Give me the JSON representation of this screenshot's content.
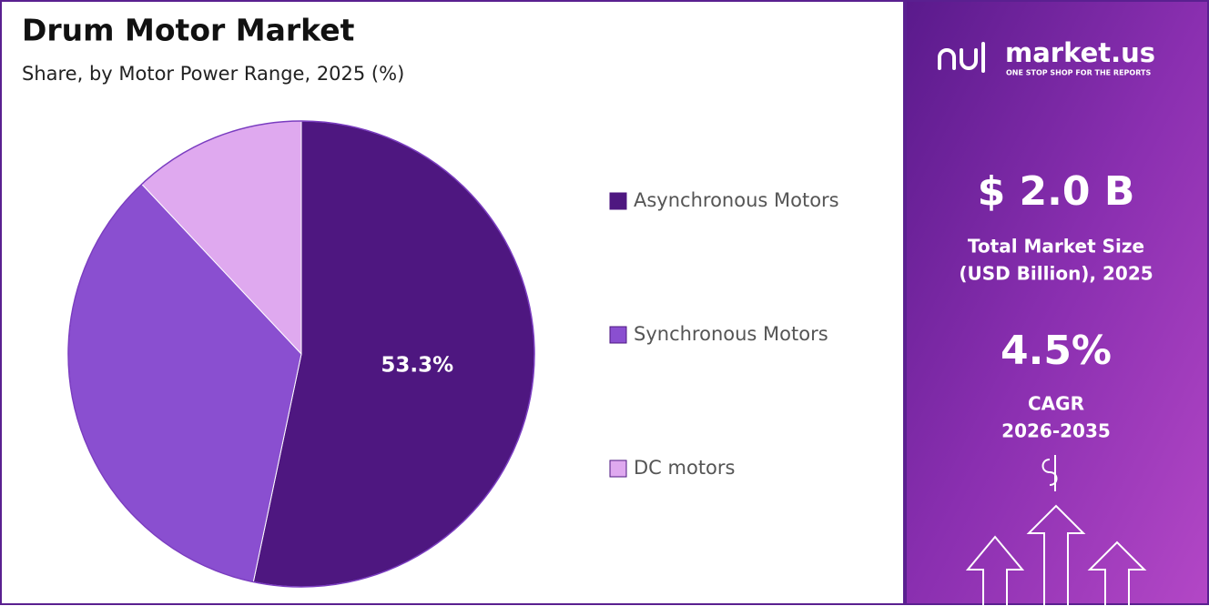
{
  "chart_data": {
    "type": "pie",
    "title": "Drum Motor Market",
    "subtitle": "Share, by Motor Power Range, 2025 (%)",
    "categories": [
      "Asynchronous Motors",
      "Synchronous Motors",
      "DC motors"
    ],
    "values": [
      53.3,
      34.7,
      12
    ],
    "value_labels": [
      "53.3%",
      null,
      null
    ],
    "colors": [
      "#4e1780",
      "#8a4fd0",
      "#dfa9ef"
    ]
  },
  "sidebar": {
    "brand": "market.us",
    "tagline": "ONE STOP SHOP FOR THE REPORTS",
    "market_size": {
      "value": "$ 2.0 B",
      "label_lines": [
        "Total Market Size",
        "(USD Billion), 2025"
      ]
    },
    "cagr": {
      "value": "4.5%",
      "label_lines": [
        "CAGR",
        "2026-2035"
      ]
    }
  }
}
